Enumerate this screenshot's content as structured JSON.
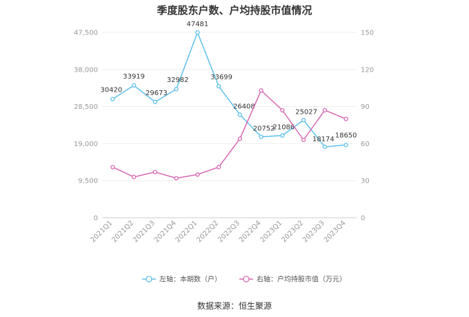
{
  "chart_data": {
    "type": "line",
    "title": "季度股东户数、户均持股市值情况",
    "categories": [
      "2021Q1",
      "2021Q2",
      "2021Q3",
      "2021Q4",
      "2022Q1",
      "2022Q2",
      "2022Q3",
      "2022Q4",
      "2023Q1",
      "2023Q2",
      "2023Q3",
      "2023Q4"
    ],
    "series": [
      {
        "name": "左轴：本期数（户）",
        "axis": "left",
        "color": "#5bc0eb",
        "values": [
          30420,
          33919,
          29673,
          32982,
          47481,
          33699,
          26408,
          20752,
          21086,
          25027,
          18174,
          18650
        ],
        "show_labels": true
      },
      {
        "name": "右轴：户均持股市值（万元）",
        "axis": "right",
        "color": "#d966b3",
        "values": [
          41,
          33,
          37,
          32,
          35,
          41,
          64,
          103,
          87,
          63,
          87,
          80
        ],
        "show_labels": false
      }
    ],
    "left_axis": {
      "min": 0,
      "max": 47500,
      "ticks": [
        0,
        9500,
        19000,
        28500,
        38000,
        47500
      ],
      "tick_labels": [
        "0",
        "9,500",
        "19,000",
        "28,500",
        "38,000",
        "47,500"
      ]
    },
    "right_axis": {
      "min": 0,
      "max": 150,
      "ticks": [
        0,
        30,
        60,
        90,
        120,
        150
      ],
      "tick_labels": [
        "0",
        "30",
        "60",
        "90",
        "120",
        "150"
      ]
    },
    "grid": true,
    "legend_position": "bottom"
  },
  "footer": {
    "source": "数据来源：恒生聚源"
  }
}
